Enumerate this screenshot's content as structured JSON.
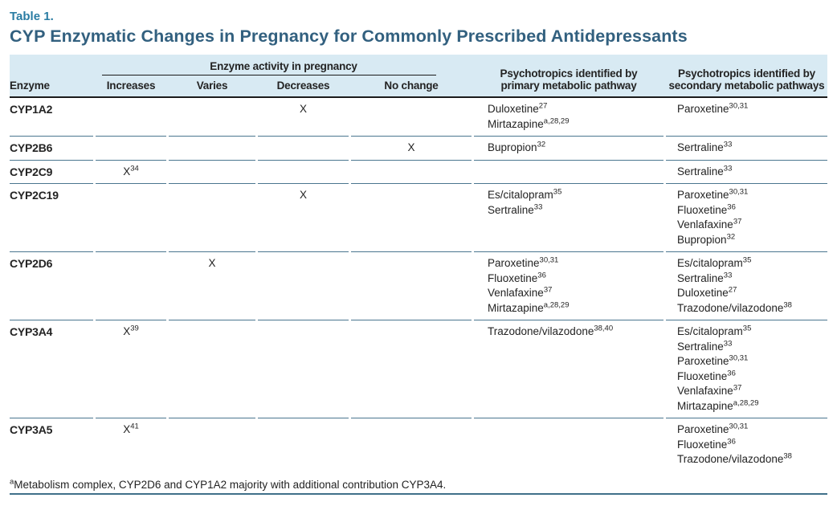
{
  "page": {
    "table_label": "Table 1.",
    "title": "CYP Enzymatic Changes in Pregnancy for Commonly Prescribed Antidepressants"
  },
  "colors": {
    "table_label_accent": "#2a7ca3",
    "title_accent": "#32607f",
    "header_background": "#d8eaf3",
    "row_divider": "#4a768f",
    "header_rule": "#1b1b1b",
    "bottom_rule": "#40708a"
  },
  "table": {
    "header": {
      "enzyme": "Enzyme",
      "activity_group": "Enzyme activity in pregnancy",
      "activity_columns": [
        "Increases",
        "Varies",
        "Decreases",
        "No change"
      ],
      "primary_line1": "Psychotropics identified by",
      "primary_line2": "primary metabolic pathway",
      "secondary_line1": "Psychotropics identified by",
      "secondary_line2": "secondary metabolic pathways"
    },
    "rows": [
      {
        "enzyme": "CYP1A2",
        "marks": [
          "",
          "",
          "X",
          ""
        ],
        "mark_sups": [
          "",
          "",
          "",
          ""
        ],
        "primary": [
          {
            "name": "Duloxetine",
            "sup": "27"
          },
          {
            "name": "Mirtazapine",
            "sup": "a,28,29"
          }
        ],
        "secondary": [
          {
            "name": "Paroxetine",
            "sup": "30,31"
          }
        ]
      },
      {
        "enzyme": "CYP2B6",
        "marks": [
          "",
          "",
          "",
          "X"
        ],
        "mark_sups": [
          "",
          "",
          "",
          ""
        ],
        "primary": [
          {
            "name": "Bupropion",
            "sup": "32"
          }
        ],
        "secondary": [
          {
            "name": "Sertraline",
            "sup": "33"
          }
        ]
      },
      {
        "enzyme": "CYP2C9",
        "marks": [
          "X",
          "",
          "",
          ""
        ],
        "mark_sups": [
          "34",
          "",
          "",
          ""
        ],
        "primary": [],
        "secondary": [
          {
            "name": "Sertraline",
            "sup": "33"
          }
        ]
      },
      {
        "enzyme": "CYP2C19",
        "marks": [
          "",
          "",
          "X",
          ""
        ],
        "mark_sups": [
          "",
          "",
          "",
          ""
        ],
        "primary": [
          {
            "name": "Es/citalopram",
            "sup": "35"
          },
          {
            "name": "Sertraline",
            "sup": "33"
          }
        ],
        "secondary": [
          {
            "name": "Paroxetine",
            "sup": "30,31"
          },
          {
            "name": "Fluoxetine",
            "sup": "36"
          },
          {
            "name": "Venlafaxine",
            "sup": "37"
          },
          {
            "name": "Bupropion",
            "sup": "32"
          }
        ]
      },
      {
        "enzyme": "CYP2D6",
        "marks": [
          "",
          "X",
          "",
          ""
        ],
        "mark_sups": [
          "",
          "",
          "",
          ""
        ],
        "primary": [
          {
            "name": "Paroxetine",
            "sup": "30,31"
          },
          {
            "name": "Fluoxetine",
            "sup": "36"
          },
          {
            "name": "Venlafaxine",
            "sup": "37"
          },
          {
            "name": "Mirtazapine",
            "sup": "a,28,29"
          }
        ],
        "secondary": [
          {
            "name": "Es/citalopram",
            "sup": "35"
          },
          {
            "name": "Sertraline",
            "sup": "33"
          },
          {
            "name": "Duloxetine",
            "sup": "27"
          },
          {
            "name": "Trazodone/vilazodone",
            "sup": "38"
          }
        ]
      },
      {
        "enzyme": "CYP3A4",
        "marks": [
          "X",
          "",
          "",
          ""
        ],
        "mark_sups": [
          "39",
          "",
          "",
          ""
        ],
        "primary": [
          {
            "name": "Trazodone/vilazodone",
            "sup": "38,40"
          }
        ],
        "secondary": [
          {
            "name": "Es/citalopram",
            "sup": "35"
          },
          {
            "name": "Sertraline",
            "sup": "33"
          },
          {
            "name": "Paroxetine",
            "sup": "30,31"
          },
          {
            "name": "Fluoxetine",
            "sup": "36"
          },
          {
            "name": "Venlafaxine",
            "sup": "37"
          },
          {
            "name": "Mirtazapine",
            "sup": "a,28,29"
          }
        ]
      },
      {
        "enzyme": "CYP3A5",
        "marks": [
          "X",
          "",
          "",
          ""
        ],
        "mark_sups": [
          "41",
          "",
          "",
          ""
        ],
        "primary": [],
        "secondary": [
          {
            "name": "Paroxetine",
            "sup": "30,31"
          },
          {
            "name": "Fluoxetine",
            "sup": "36"
          },
          {
            "name": "Trazodone/vilazodone",
            "sup": "38"
          }
        ]
      }
    ]
  },
  "footnote": {
    "sup": "a",
    "text": "Metabolism complex, CYP2D6 and CYP1A2 majority with additional contribution CYP3A4."
  }
}
